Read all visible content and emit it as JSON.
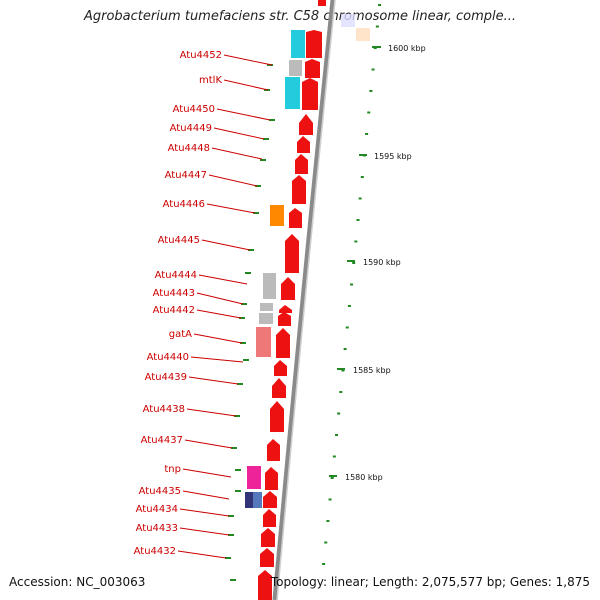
{
  "title": "Agrobacterium tumefaciens str. C58 chromosome linear, comple...",
  "accession": "Accession: NC_003063",
  "summary": "Topology: linear; Length: 2,075,577 bp; Genes: 1,875",
  "scale_labels": [
    "1600 kbp",
    "1595 kbp",
    "1590 kbp",
    "1585 kbp",
    "1580 kbp"
  ],
  "genes": [
    "Atu4452",
    "mtlK",
    "Atu4450",
    "Atu4449",
    "Atu4448",
    "Atu4447",
    "Atu4446",
    "Atu4445",
    "Atu4444",
    "Atu4443",
    "Atu4442",
    "gatA",
    "Atu4440",
    "Atu4439",
    "Atu4438",
    "Atu4437",
    "tnp",
    "Atu4435",
    "Atu4434",
    "Atu4433",
    "Atu4432"
  ],
  "colors": {
    "gene": "#ee1111",
    "label": "#cc0000",
    "tick": "#228822",
    "backbone": "#8a8a8a",
    "cds_cyan": "#22ccdd",
    "cds_gray": "#bbbbbb",
    "cds_orange": "#ff8800",
    "cds_pink": "#ee7777",
    "cds_magenta": "#ee2299",
    "cds_navy": "#333377",
    "cds_blue": "#5577bb"
  }
}
